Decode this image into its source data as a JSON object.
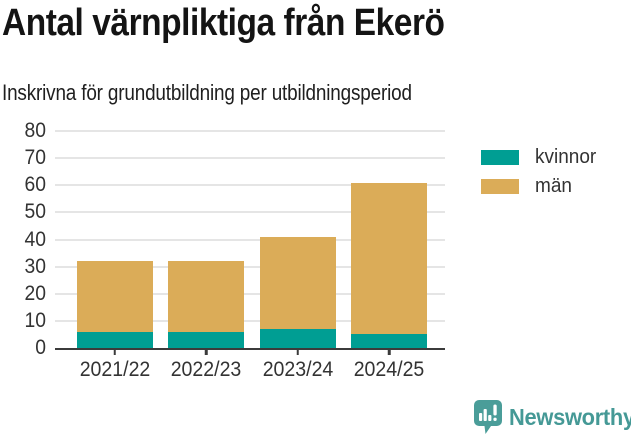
{
  "header": {
    "title": "Antal värnpliktiga från Ekerö",
    "subtitle": "Inskrivna för grundutbildning per utbildningsperiod"
  },
  "chart_data": {
    "type": "bar",
    "stacked": true,
    "categories": [
      "2021/22",
      "2022/23",
      "2023/24",
      "2024/25"
    ],
    "series": [
      {
        "name": "kvinnor",
        "color": "#009e93",
        "values": [
          6,
          6,
          7,
          5
        ]
      },
      {
        "name": "män",
        "color": "#dbac58",
        "values": [
          26,
          26,
          34,
          56
        ]
      }
    ],
    "totals": [
      32,
      32,
      41,
      61
    ],
    "title": "Antal värnpliktiga från Ekerö",
    "subtitle": "Inskrivna för grundutbildning per utbildningsperiod",
    "xlabel": "",
    "ylabel": "",
    "ylim": [
      0,
      80
    ],
    "yticks": [
      0,
      10,
      20,
      30,
      40,
      50,
      60,
      70,
      80
    ],
    "grid": true,
    "legend_position": "right"
  },
  "legend": {
    "items": [
      {
        "label": "kvinnor",
        "color": "#009e93"
      },
      {
        "label": "män",
        "color": "#dbac58"
      }
    ]
  },
  "footer": {
    "brand": "Newsworthy",
    "brand_color": "#459996",
    "logo_icon": "speech-bubble-bar-chart-icon"
  },
  "colors": {
    "background": "#ffffff",
    "title_text": "#141414",
    "axis_text": "#333333",
    "axis_line": "#3b3b3b",
    "grid_line": "#e5e5e5",
    "kvinnor": "#009e93",
    "man": "#dbac58",
    "brand_teal": "#459996"
  }
}
